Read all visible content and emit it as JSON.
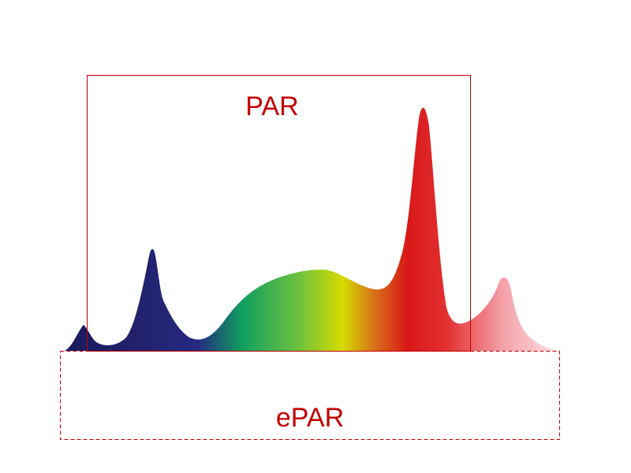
{
  "diagram": {
    "par_label": "PAR",
    "epar_label": "ePAR",
    "colors": {
      "frame": "#c00000",
      "label": "#c00000",
      "spectrum_stops": [
        "#1a1a5c",
        "#22226e",
        "#252a80",
        "#10a060",
        "#6cc040",
        "#d4dc00",
        "#d81818",
        "#e23030",
        "#f4a0a8",
        "#fde4e6"
      ]
    }
  }
}
